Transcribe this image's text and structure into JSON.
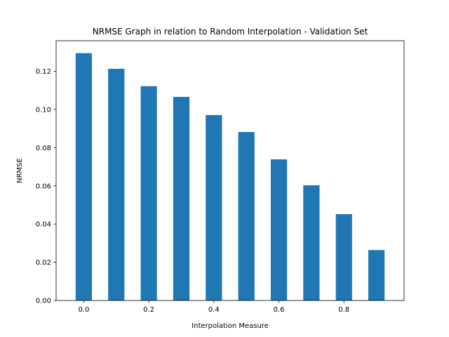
{
  "chart_data": {
    "type": "bar",
    "title": "NRMSE Graph in relation to Random Interpolation - Validation Set",
    "xlabel": "Interpolation Measure",
    "ylabel": "NRMSE",
    "x": [
      0.0,
      0.1,
      0.2,
      0.3,
      0.4,
      0.5,
      0.6,
      0.7,
      0.8,
      0.9
    ],
    "values": [
      0.1295,
      0.1213,
      0.1122,
      0.1066,
      0.0971,
      0.0882,
      0.0739,
      0.0603,
      0.0452,
      0.0264
    ],
    "bar_width": 0.05,
    "xlim": [
      -0.085,
      0.985
    ],
    "ylim": [
      0,
      0.136
    ],
    "xticks": [
      0.0,
      0.2,
      0.4,
      0.6,
      0.8
    ],
    "xtick_labels": [
      "0.0",
      "0.2",
      "0.4",
      "0.6",
      "0.8"
    ],
    "yticks": [
      0.0,
      0.02,
      0.04,
      0.06,
      0.08,
      0.1,
      0.12
    ],
    "ytick_labels": [
      "0.00",
      "0.02",
      "0.04",
      "0.06",
      "0.08",
      "0.10",
      "0.12"
    ],
    "bar_color": "#1f77b4",
    "grid": false,
    "legend": "none"
  }
}
